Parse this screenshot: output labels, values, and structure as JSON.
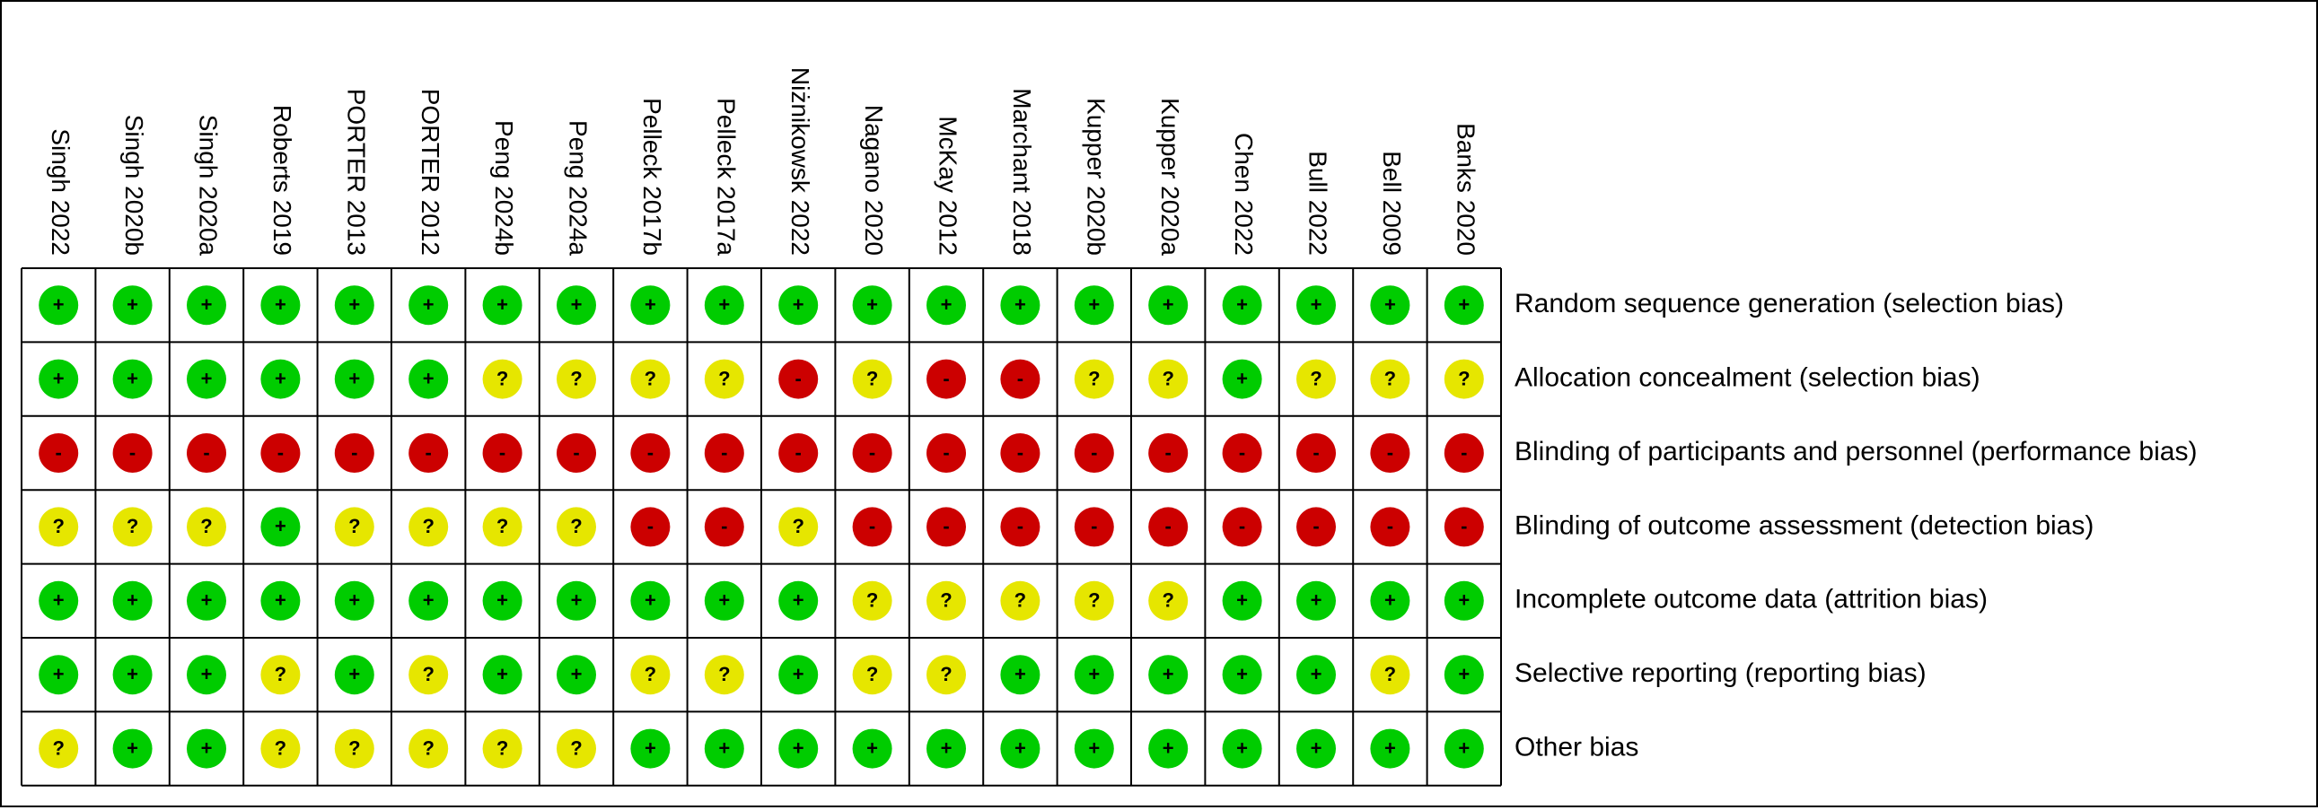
{
  "chart_data": {
    "type": "table",
    "studies": [
      "Singh 2022",
      "Singh 2020b",
      "Singh 2020a",
      "Roberts 2019",
      "PORTER 2013",
      "PORTER 2012",
      "Peng 2024b",
      "Peng 2024a",
      "Pelleck 2017b",
      "Pelleck 2017a",
      "Niżnikowsk 2022",
      "Nagano 2020",
      "McKay 2012",
      "Marchant 2018",
      "Kupper 2020b",
      "Kupper 2020a",
      "Chen 2022",
      "Bull 2022",
      "Bell 2009",
      "Banks 2020"
    ],
    "domains": [
      "Random sequence generation (selection bias)",
      "Allocation concealment (selection bias)",
      "Blinding of participants and personnel (performance bias)",
      "Blinding of outcome assessment (detection bias)",
      "Incomplete outcome data (attrition bias)",
      "Selective reporting (reporting bias)",
      "Other bias"
    ],
    "judgements": [
      [
        "+",
        "+",
        "+",
        "+",
        "+",
        "+",
        "+",
        "+",
        "+",
        "+",
        "+",
        "+",
        "+",
        "+",
        "+",
        "+",
        "+",
        "+",
        "+",
        "+"
      ],
      [
        "+",
        "+",
        "+",
        "+",
        "+",
        "+",
        "?",
        "?",
        "?",
        "?",
        "-",
        "?",
        "-",
        "-",
        "?",
        "?",
        "+",
        "?",
        "?",
        "?"
      ],
      [
        "-",
        "-",
        "-",
        "-",
        "-",
        "-",
        "-",
        "-",
        "-",
        "-",
        "-",
        "-",
        "-",
        "-",
        "-",
        "-",
        "-",
        "-",
        "-",
        "-"
      ],
      [
        "?",
        "?",
        "?",
        "+",
        "?",
        "?",
        "?",
        "?",
        "-",
        "-",
        "?",
        "-",
        "-",
        "-",
        "-",
        "-",
        "-",
        "-",
        "-",
        "-"
      ],
      [
        "+",
        "+",
        "+",
        "+",
        "+",
        "+",
        "+",
        "+",
        "+",
        "+",
        "+",
        "?",
        "?",
        "?",
        "?",
        "?",
        "+",
        "+",
        "+",
        "+"
      ],
      [
        "+",
        "+",
        "+",
        "?",
        "+",
        "?",
        "+",
        "+",
        "?",
        "?",
        "+",
        "?",
        "?",
        "+",
        "+",
        "+",
        "+",
        "+",
        "?",
        "+"
      ],
      [
        "?",
        "+",
        "+",
        "?",
        "?",
        "?",
        "?",
        "?",
        "+",
        "+",
        "+",
        "+",
        "+",
        "+",
        "+",
        "+",
        "+",
        "+",
        "+",
        "+"
      ]
    ],
    "symbols": {
      "low": "+",
      "unclear": "?",
      "high": "-"
    },
    "colors": {
      "low": "#00cc00",
      "unclear": "#e6e600",
      "high": "#cc0000",
      "grid": "#000000"
    }
  }
}
